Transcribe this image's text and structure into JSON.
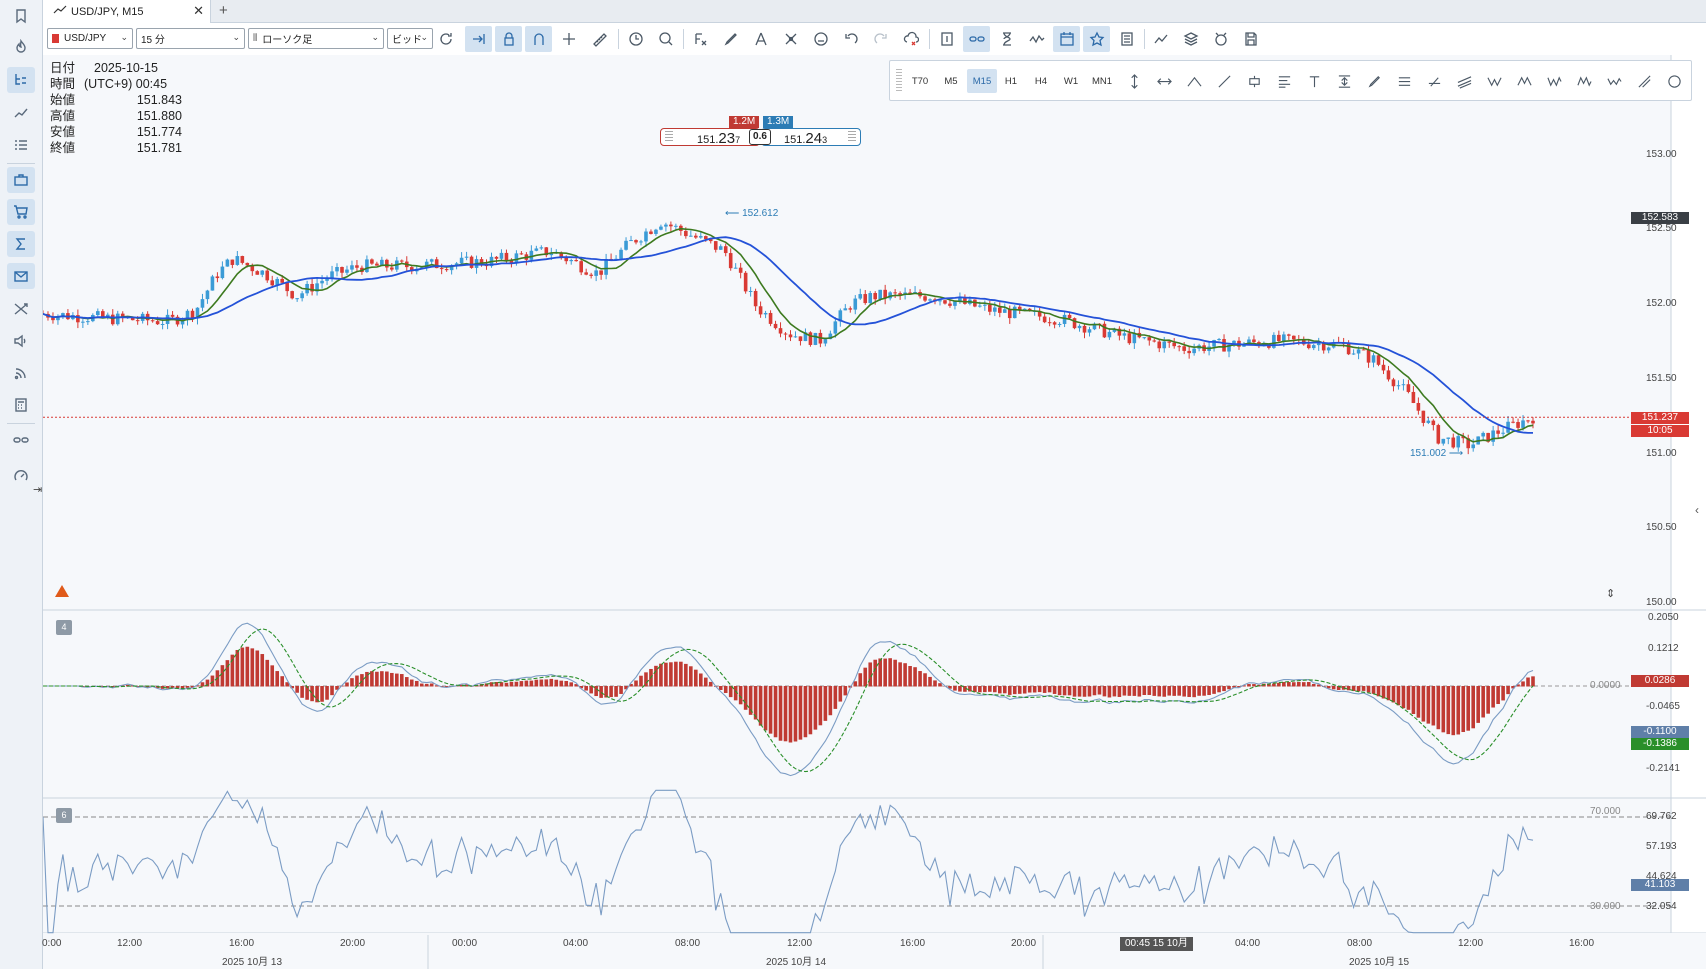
{
  "tab": {
    "title": "USD/JPY, M15",
    "close": "✕",
    "add": "+"
  },
  "toolbar": {
    "symbol": "USD/JPY",
    "timeframe": "15 分",
    "chart_type": "ローソク足",
    "price_side": "ビッド"
  },
  "ohlc": {
    "date_label": "日付",
    "date": "2025-10-15",
    "time_label": "時間",
    "time": "(UTC+9) 00:45",
    "open_label": "始値",
    "open": "151.843",
    "high_label": "高値",
    "high": "151.880",
    "low_label": "安値",
    "low": "151.774",
    "close_label": "終値",
    "close": "151.781"
  },
  "order": {
    "sell_vol": "1.2M",
    "buy_vol": "1.3M",
    "sell_a": "151.",
    "sell_b": "23",
    "sell_c": "7",
    "spread": "0.6",
    "buy_a": "151.",
    "buy_b": "24",
    "buy_c": "3"
  },
  "timeframes": [
    "T70",
    "M5",
    "M15",
    "H1",
    "H4",
    "W1",
    "MN1"
  ],
  "active_timeframe": "M15",
  "price_axis": {
    "main_ticks": [
      "153.00",
      "152.50",
      "152.00",
      "151.50",
      "151.00",
      "150.50",
      "150.00"
    ],
    "high_marker": "152.583",
    "current_price": "151.237",
    "countdown": "10:05",
    "high_label": "152.612",
    "low_label": "151.002"
  },
  "macd": {
    "pane_id": "4",
    "ticks": [
      "0.2050",
      "0.1212",
      "-0.0465",
      "-0.2141"
    ],
    "zero_label": "0.0000",
    "hist_value": "0.0286",
    "main_value": "-0.1100",
    "signal_value": "-0.1386"
  },
  "rsi": {
    "pane_id": "6",
    "ticks": [
      "69.762",
      "57.193",
      "44.624",
      "32.054"
    ],
    "upper_level": "70.000",
    "lower_level": "30.000",
    "value": "41.103"
  },
  "x_axis": {
    "times": [
      "0:00",
      "12:00",
      "16:00",
      "20:00",
      "00:00",
      "04:00",
      "08:00",
      "12:00",
      "16:00",
      "20:00",
      "04:00",
      "08:00",
      "12:00",
      "16:00"
    ],
    "cursor_label": "00:45 15 10月",
    "dates": [
      "2025 10月 13",
      "2025 10月 14",
      "2025 10月 15"
    ]
  },
  "colors": {
    "up": "#3b9bd6",
    "down": "#d93a34",
    "ma_fast": "#3d7a1f",
    "ma_slow": "#2452d8",
    "macd_hist": "#c03a33",
    "rsi_line": "#7b9cc4"
  }
}
